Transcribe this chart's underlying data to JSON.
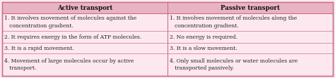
{
  "title_left": "Active transport",
  "title_right": "Passive transport",
  "active_rows": [
    [
      "1.",
      " It involves movement of molecules against the\n   concentration gradient."
    ],
    [
      "2.",
      " It requires energy in the form of ATP molecules."
    ],
    [
      "3.",
      " It is a rapid movement."
    ],
    [
      "4.",
      " Movement of large molecules occur by active\n   transport."
    ]
  ],
  "passive_rows": [
    [
      "1.",
      " It involves movement of molecules along the\n   concentration gradient."
    ],
    [
      "2.",
      " No energy is required."
    ],
    [
      "3.",
      " It is a slow movement."
    ],
    [
      "4.",
      " Only small molecules or water molecules are\n   transported passively."
    ]
  ],
  "header_bg": "#e8b4c3",
  "row_bg": "#fde8f0",
  "border_color": "#c8708a",
  "text_color": "#222222",
  "header_text_color": "#111111",
  "font_size": 5.5,
  "header_font_size": 6.2,
  "fig_bg": "#fde8f0"
}
